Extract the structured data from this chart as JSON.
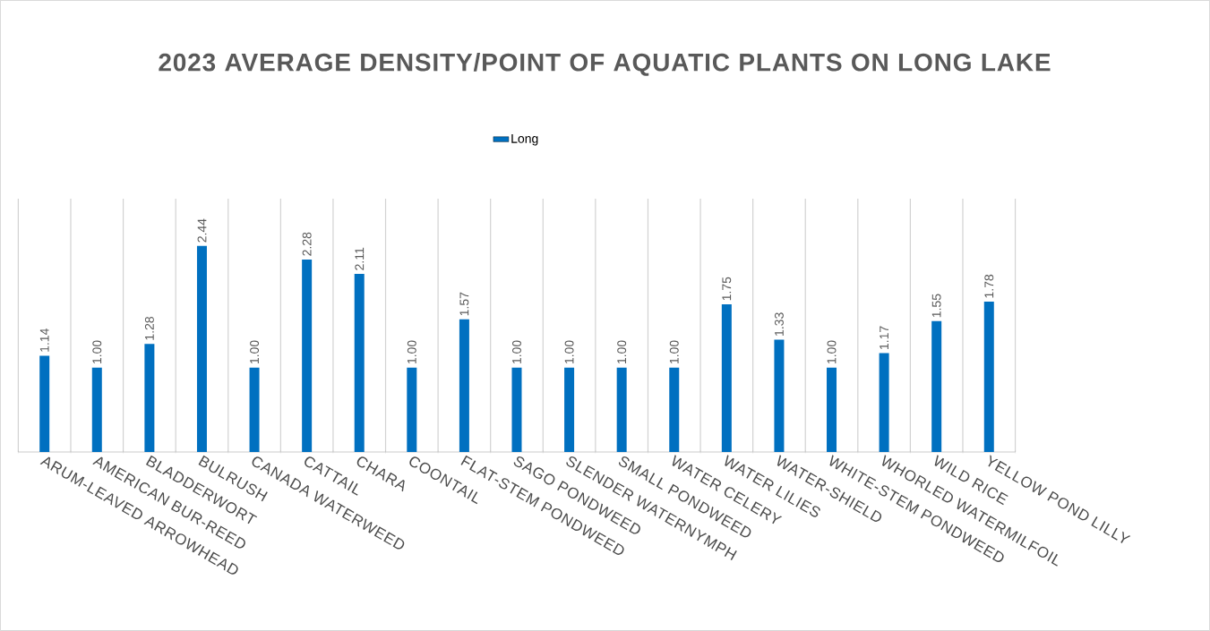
{
  "chart_data": {
    "type": "bar",
    "title": "2023 AVERAGE DENSITY/POINT OF AQUATIC PLANTS ON LONG LAKE",
    "categories": [
      "ARUM-LEAVED ARROWHEAD",
      "AMERICAN BUR-REED",
      "BLADDERWORT",
      "BULRUSH",
      "CANADA WATERWEED",
      "CATTAIL",
      "CHARA",
      "COONTAIL",
      "FLAT-STEM PONDWEED",
      "SAGO PONDWEED",
      "SLENDER WATERNYMPH",
      "SMALL PONDWEED",
      "WATER CELERY",
      "WATER LILIES",
      "WATER-SHIELD",
      "WHITE-STEM PONDWEED",
      "WHORLED WATERMILFOIL",
      "WILD RICE",
      "YELLOW POND LILLY"
    ],
    "series": [
      {
        "name": "Long",
        "color": "#0070c0",
        "values": [
          1.14,
          1.0,
          1.28,
          2.44,
          1.0,
          2.28,
          2.11,
          1.0,
          1.57,
          1.0,
          1.0,
          1.0,
          1.0,
          1.75,
          1.33,
          1.0,
          1.17,
          1.55,
          1.78
        ],
        "value_labels": [
          "1.14",
          "1.00",
          "1.28",
          "2.44",
          "1.00",
          "2.28",
          "2.11",
          "1.00",
          "1.57",
          "1.00",
          "1.00",
          "1.00",
          "1.00",
          "1.75",
          "1.33",
          "1.00",
          "1.17",
          "1.55",
          "1.78"
        ]
      }
    ],
    "ylim": [
      0,
      3
    ],
    "grid": "x",
    "legend": "top"
  }
}
